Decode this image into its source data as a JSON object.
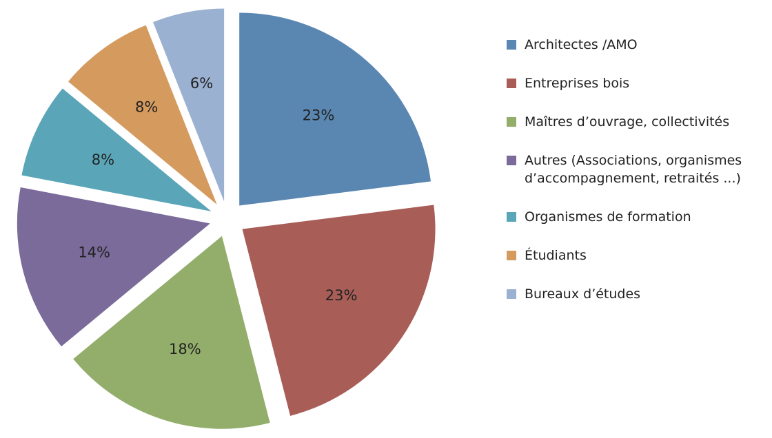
{
  "chart_data": {
    "type": "pie",
    "categories": [
      "Architectes /AMO",
      "Entreprises bois",
      "Maîtres d’ouvrage, collectivités",
      "Autres (Associations, organismes d’accompagnement, retraités ...)",
      "Organismes de formation",
      "Étudiants",
      "Bureaux d’études"
    ],
    "values": [
      23,
      23,
      18,
      14,
      8,
      8,
      6
    ],
    "value_labels": [
      "23%",
      "23%",
      "18%",
      "14%",
      "8%",
      "8%",
      "6%"
    ],
    "colors": [
      "#5a87b2",
      "#a85d57",
      "#93ad6b",
      "#7a6b9a",
      "#5aa6b8",
      "#d59a5e",
      "#9bb1d1"
    ],
    "legend": "right"
  }
}
